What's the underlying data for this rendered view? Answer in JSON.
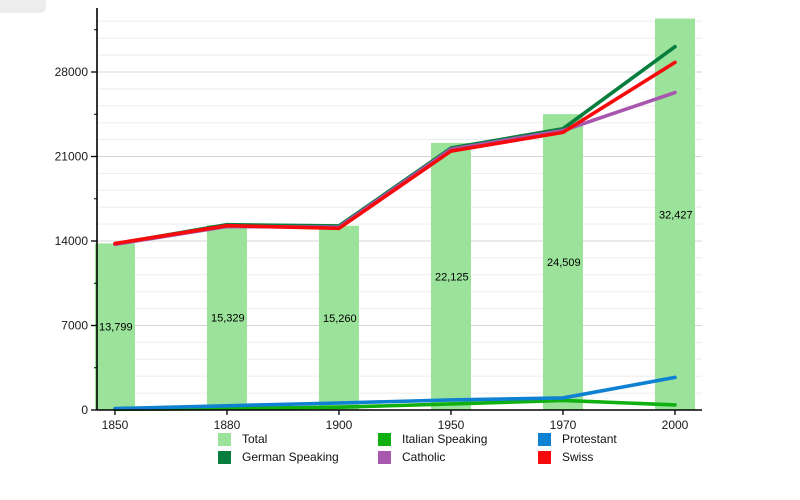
{
  "chart_data": {
    "type": "bar+line",
    "categories": [
      "1850",
      "1880",
      "1900",
      "1950",
      "1970",
      "2000"
    ],
    "bars": {
      "name": "Total",
      "color": "#9be29b",
      "values": [
        13799,
        15329,
        15260,
        22125,
        24509,
        32427
      ],
      "labels": [
        "13,799",
        "15,329",
        "15,260",
        "22,125",
        "24,509",
        "32,427"
      ]
    },
    "series": [
      {
        "name": "German Speaking",
        "color": "#077d3e",
        "values": [
          13760,
          15350,
          15250,
          21700,
          23300,
          30100
        ]
      },
      {
        "name": "Italian Speaking",
        "color": "#10b010",
        "values": [
          60,
          120,
          230,
          500,
          790,
          420
        ]
      },
      {
        "name": "Catholic",
        "color": "#a757ad",
        "values": [
          13720,
          15200,
          15150,
          21600,
          23150,
          26300
        ]
      },
      {
        "name": "Protestant",
        "color": "#0f81d2",
        "values": [
          120,
          350,
          580,
          830,
          1000,
          2700
        ]
      },
      {
        "name": "Swiss",
        "color": "#f50b0b",
        "values": [
          13790,
          15270,
          15050,
          21450,
          23000,
          28800
        ]
      }
    ],
    "yticks": [
      0,
      7000,
      14000,
      21000,
      28000
    ],
    "y_tick_labels": [
      "0",
      "7000",
      "14000",
      "21000",
      "28000"
    ],
    "ylim": [
      0,
      33300
    ],
    "grid": "horizontal, minor every 1400, major every 7000",
    "legend_position": "bottom",
    "title": "",
    "xlabel": "",
    "ylabel": ""
  },
  "legend": {
    "items": [
      {
        "label": "Total",
        "color": "#9be29b"
      },
      {
        "label": "German Speaking",
        "color": "#077d3e"
      },
      {
        "label": "Italian Speaking",
        "color": "#10b010"
      },
      {
        "label": "Catholic",
        "color": "#a757ad"
      },
      {
        "label": "Protestant",
        "color": "#0f81d2"
      },
      {
        "label": "Swiss",
        "color": "#f50b0b"
      }
    ]
  },
  "colors": {
    "axis": "#000000",
    "grid_minor": "#ededed",
    "grid_major": "#d4d4d4",
    "tick_label": "#1a1a1a",
    "bar_label": "#000000"
  }
}
